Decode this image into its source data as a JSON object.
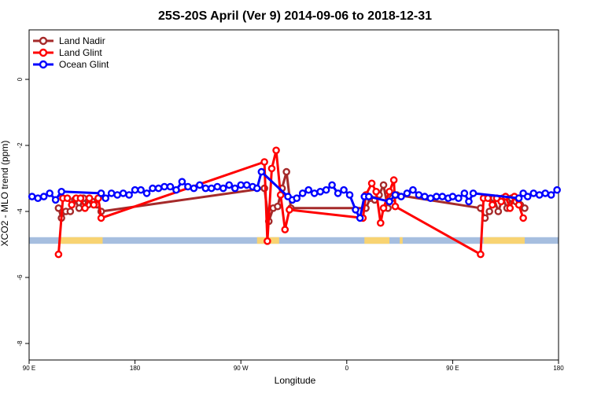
{
  "chart_data": {
    "type": "line",
    "title": "25S-20S April (Ver 9)   2014-09-06 to 2018-12-31",
    "xlabel": "Longitude",
    "ylabel": "XCO2 - MLO trend (ppm)",
    "xlim": [
      0,
      360
    ],
    "ylim": [
      -8.5,
      1.5
    ],
    "x_ticks": [
      {
        "value": 0,
        "label": "90 E"
      },
      {
        "value": 72,
        "label": "180"
      },
      {
        "value": 144,
        "label": "90 W"
      },
      {
        "value": 216,
        "label": "0"
      },
      {
        "value": 288,
        "label": "90 E"
      },
      {
        "value": 360,
        "label": "180"
      }
    ],
    "y_ticks": [
      {
        "value": 0,
        "label": "0"
      },
      {
        "value": -2,
        "label": "-2"
      },
      {
        "value": -4,
        "label": "-4"
      },
      {
        "value": -6,
        "label": "-6"
      },
      {
        "value": -8,
        "label": "-8"
      }
    ],
    "legend_position": "top-left",
    "grid": false,
    "land_band": {
      "y_range": [
        -4.78,
        -4.98
      ],
      "ocean_color": "#a6bedf",
      "land_color": "#f8d372",
      "land_segments": [
        [
          20,
          50
        ],
        [
          155,
          170
        ],
        [
          228,
          245
        ],
        [
          252,
          254
        ],
        [
          309,
          337
        ]
      ]
    },
    "series": [
      {
        "name": "Land Nadir",
        "color": "#a52a2a",
        "points": [
          [
            20,
            -3.9
          ],
          [
            22,
            -4.2
          ],
          [
            25,
            -4.0
          ],
          [
            28,
            -4.0
          ],
          [
            31,
            -3.65
          ],
          [
            34,
            -3.9
          ],
          [
            37,
            -3.6
          ],
          [
            40,
            -3.8
          ],
          [
            43,
            -3.7
          ],
          [
            46,
            -3.8
          ],
          [
            49,
            -4.0
          ],
          [
            160,
            -3.3
          ],
          [
            163,
            -4.3
          ],
          [
            166,
            -3.9
          ],
          [
            169,
            -3.85
          ],
          [
            172,
            -3.3
          ],
          [
            175,
            -2.8
          ],
          [
            178,
            -3.9
          ],
          [
            229,
            -3.9
          ],
          [
            232,
            -3.6
          ],
          [
            235,
            -3.65
          ],
          [
            238,
            -3.5
          ],
          [
            241,
            -3.2
          ],
          [
            244,
            -3.9
          ],
          [
            247,
            -3.6
          ],
          [
            250,
            -3.5
          ],
          [
            307,
            -3.9
          ],
          [
            310,
            -4.2
          ],
          [
            313,
            -4.0
          ],
          [
            316,
            -3.6
          ],
          [
            319,
            -4.0
          ],
          [
            322,
            -3.6
          ],
          [
            325,
            -3.9
          ],
          [
            328,
            -3.6
          ],
          [
            331,
            -3.7
          ],
          [
            334,
            -3.8
          ],
          [
            337,
            -3.9
          ]
        ]
      },
      {
        "name": "Land Glint",
        "color": "#ff0000",
        "points": [
          [
            20,
            -5.3
          ],
          [
            23,
            -3.6
          ],
          [
            26,
            -3.6
          ],
          [
            29,
            -3.8
          ],
          [
            32,
            -3.6
          ],
          [
            35,
            -3.6
          ],
          [
            38,
            -3.9
          ],
          [
            41,
            -3.6
          ],
          [
            44,
            -3.8
          ],
          [
            47,
            -3.6
          ],
          [
            49,
            -4.2
          ],
          [
            160,
            -2.5
          ],
          [
            162,
            -4.9
          ],
          [
            165,
            -2.7
          ],
          [
            168,
            -2.15
          ],
          [
            171,
            -3.5
          ],
          [
            174,
            -4.55
          ],
          [
            177,
            -3.95
          ],
          [
            227,
            -4.2
          ],
          [
            229,
            -3.5
          ],
          [
            233,
            -3.15
          ],
          [
            236,
            -3.4
          ],
          [
            239,
            -4.35
          ],
          [
            241,
            -3.9
          ],
          [
            245,
            -3.4
          ],
          [
            248,
            -3.05
          ],
          [
            249,
            -3.85
          ],
          [
            307,
            -5.3
          ],
          [
            309,
            -3.6
          ],
          [
            312,
            -3.6
          ],
          [
            315,
            -3.8
          ],
          [
            318,
            -3.6
          ],
          [
            321,
            -3.7
          ],
          [
            324,
            -3.55
          ],
          [
            327,
            -3.9
          ],
          [
            330,
            -3.55
          ],
          [
            333,
            -3.8
          ],
          [
            336,
            -4.2
          ]
        ]
      },
      {
        "name": "Ocean Glint",
        "color": "#0000ff",
        "points": [
          [
            2,
            -3.55
          ],
          [
            6,
            -3.6
          ],
          [
            10,
            -3.55
          ],
          [
            14,
            -3.45
          ],
          [
            18,
            -3.65
          ],
          [
            22,
            -3.4
          ],
          [
            49,
            -3.45
          ],
          [
            52,
            -3.6
          ],
          [
            56,
            -3.45
          ],
          [
            60,
            -3.5
          ],
          [
            64,
            -3.45
          ],
          [
            68,
            -3.5
          ],
          [
            72,
            -3.35
          ],
          [
            76,
            -3.35
          ],
          [
            80,
            -3.45
          ],
          [
            84,
            -3.3
          ],
          [
            88,
            -3.3
          ],
          [
            92,
            -3.25
          ],
          [
            96,
            -3.25
          ],
          [
            100,
            -3.35
          ],
          [
            104,
            -3.1
          ],
          [
            108,
            -3.25
          ],
          [
            112,
            -3.3
          ],
          [
            116,
            -3.2
          ],
          [
            120,
            -3.3
          ],
          [
            124,
            -3.3
          ],
          [
            128,
            -3.25
          ],
          [
            132,
            -3.3
          ],
          [
            136,
            -3.2
          ],
          [
            140,
            -3.3
          ],
          [
            144,
            -3.2
          ],
          [
            148,
            -3.2
          ],
          [
            152,
            -3.25
          ],
          [
            155,
            -3.3
          ],
          [
            158,
            -2.8
          ],
          [
            176,
            -3.55
          ],
          [
            179,
            -3.65
          ],
          [
            182,
            -3.6
          ],
          [
            186,
            -3.45
          ],
          [
            190,
            -3.35
          ],
          [
            194,
            -3.45
          ],
          [
            198,
            -3.4
          ],
          [
            202,
            -3.35
          ],
          [
            206,
            -3.2
          ],
          [
            210,
            -3.45
          ],
          [
            214,
            -3.35
          ],
          [
            218,
            -3.5
          ],
          [
            222,
            -3.95
          ],
          [
            225,
            -4.2
          ],
          [
            228,
            -3.55
          ],
          [
            231,
            -3.55
          ],
          [
            245,
            -3.7
          ],
          [
            249,
            -3.5
          ],
          [
            253,
            -3.55
          ],
          [
            257,
            -3.45
          ],
          [
            261,
            -3.35
          ],
          [
            265,
            -3.5
          ],
          [
            269,
            -3.55
          ],
          [
            273,
            -3.6
          ],
          [
            277,
            -3.55
          ],
          [
            281,
            -3.55
          ],
          [
            285,
            -3.6
          ],
          [
            288,
            -3.55
          ],
          [
            292,
            -3.6
          ],
          [
            296,
            -3.45
          ],
          [
            299,
            -3.7
          ],
          [
            302,
            -3.45
          ],
          [
            333,
            -3.6
          ],
          [
            336,
            -3.45
          ],
          [
            339,
            -3.55
          ],
          [
            343,
            -3.45
          ],
          [
            347,
            -3.5
          ],
          [
            351,
            -3.45
          ],
          [
            355,
            -3.5
          ],
          [
            359,
            -3.35
          ]
        ]
      }
    ]
  }
}
